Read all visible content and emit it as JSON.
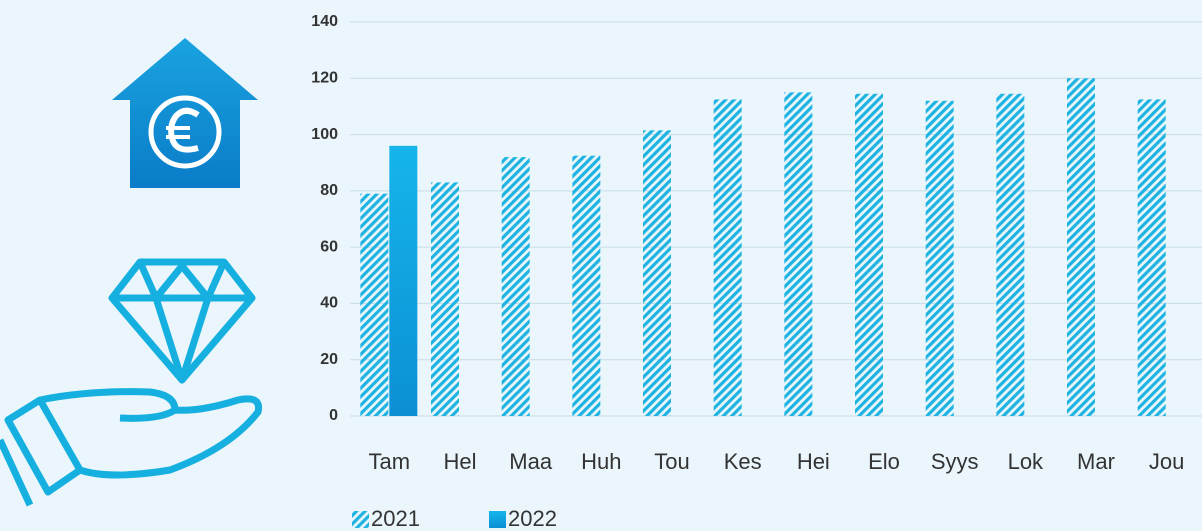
{
  "chart_data": {
    "type": "bar",
    "categories": [
      "Tam",
      "Hel",
      "Maa",
      "Huh",
      "Tou",
      "Kes",
      "Hei",
      "Elo",
      "Syys",
      "Lok",
      "Mar",
      "Jou"
    ],
    "series": [
      {
        "name": "2021",
        "color": "#1fb3e2",
        "fill": "hatch",
        "values": [
          79,
          83,
          92,
          92.5,
          101.5,
          112.5,
          115,
          114.5,
          112,
          114.5,
          120,
          112.5
        ]
      },
      {
        "name": "2022",
        "color": "#0b8fd5",
        "fill": "gradient",
        "values": [
          96,
          null,
          null,
          null,
          null,
          null,
          null,
          null,
          null,
          null,
          null,
          null
        ]
      }
    ],
    "ylim": [
      0,
      140
    ],
    "yticks": [
      0,
      20,
      40,
      60,
      80,
      100,
      120,
      140
    ],
    "grid": true,
    "legend": "bottom-left"
  }
}
